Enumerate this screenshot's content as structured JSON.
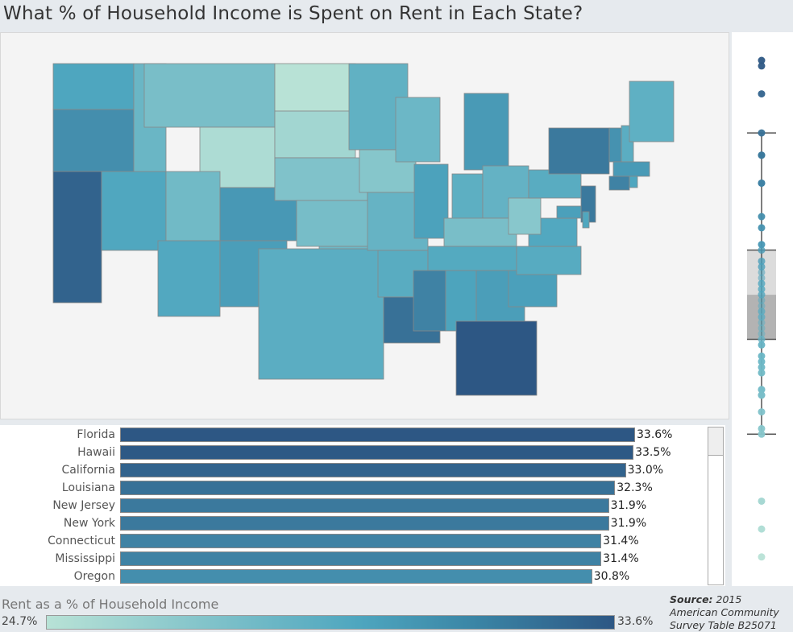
{
  "title": "What % of Household Income is Spent on Rent in Each State?",
  "colors": {
    "low": "#b8e2d6",
    "mid": "#4ea6bf",
    "high": "#2d5784"
  },
  "chart_data": [
    {
      "type": "map",
      "description_values": "state fill = rent as % of household income",
      "range": [
        24.7,
        33.6
      ],
      "states": {
        "WA": 29.6,
        "OR": 30.8,
        "CA": 33.0,
        "NV": 29.5,
        "ID": 28.3,
        "MT": 27.6,
        "WY": 25.2,
        "UT": 28.0,
        "CO": 30.3,
        "AZ": 29.4,
        "NM": 30.0,
        "ND": 24.7,
        "SD": 25.7,
        "NE": 27.3,
        "KS": 27.7,
        "OK": 28.1,
        "TX": 29.0,
        "MN": 28.7,
        "IA": 27.0,
        "MO": 28.5,
        "AR": 29.1,
        "LA": 32.3,
        "WI": 28.2,
        "IL": 29.8,
        "MI": 30.2,
        "IN": 28.9,
        "OH": 28.6,
        "KY": 27.6,
        "TN": 29.3,
        "MS": 31.4,
        "AL": 29.7,
        "GA": 30.0,
        "FL": 33.6,
        "SC": 29.9,
        "NC": 29.2,
        "VA": 29.4,
        "WV": 26.9,
        "PA": 29.1,
        "NY": 31.9,
        "VT": 30.6,
        "NH": 29.0,
        "ME": 28.8,
        "MA": 30.2,
        "CT": 31.4,
        "NJ": 31.9,
        "MD": 29.9,
        "DE": 29.5,
        "RI": 29.6
      }
    },
    {
      "type": "bar",
      "title": "",
      "categories": [
        "Florida",
        "Hawaii",
        "California",
        "Louisiana",
        "New Jersey",
        "New York",
        "Connecticut",
        "Mississippi",
        "Oregon"
      ],
      "values": [
        33.6,
        33.5,
        33.0,
        32.3,
        31.9,
        31.9,
        31.4,
        31.4,
        30.8
      ],
      "labels": [
        "33.6%",
        "33.5%",
        "33.0%",
        "32.3%",
        "31.9%",
        "31.9%",
        "31.4%",
        "31.4%",
        "30.8%"
      ],
      "xlim": [
        0,
        33.6
      ]
    },
    {
      "type": "box_strip",
      "values": [
        33.6,
        33.5,
        33.0,
        32.3,
        31.9,
        31.9,
        31.4,
        31.4,
        30.8,
        30.6,
        30.3,
        30.2,
        30.2,
        30.0,
        30.0,
        29.9,
        29.9,
        29.8,
        29.7,
        29.6,
        29.6,
        29.5,
        29.5,
        29.4,
        29.4,
        29.3,
        29.2,
        29.1,
        29.1,
        29.0,
        29.0,
        28.9,
        28.8,
        28.7,
        28.6,
        28.6,
        28.5,
        28.3,
        28.2,
        28.1,
        28.0,
        27.7,
        27.7,
        27.6,
        27.6,
        27.3,
        27.0,
        26.9,
        25.7,
        25.2,
        24.7
      ],
      "whisker_high": 32.3,
      "q3": 30.2,
      "median": 29.4,
      "q1": 28.6,
      "whisker_low": 26.9,
      "ylim": [
        24.7,
        33.6
      ]
    }
  ],
  "legend": {
    "title": "Rent as a % of Household Income",
    "min": "24.7%",
    "max": "33.6%"
  },
  "source": {
    "label": "Source:",
    "text": " 2015 American Community Survey Table B25071"
  }
}
